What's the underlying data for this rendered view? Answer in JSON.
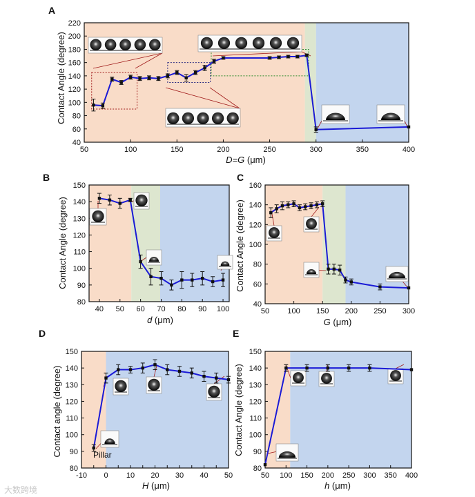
{
  "watermark": "大数跨境",
  "colors": {
    "line": "#1a1ad6",
    "marker": "#111111",
    "zone_wenzel": "#f9dcc8",
    "zone_transition": "#dde6cf",
    "zone_cassie": "#c3d5ee",
    "zoom_box": "#a01a1a",
    "zoom_box_blue": "#2a2a80",
    "zoom_box_green": "#2a8a2a"
  },
  "chart_data": [
    {
      "panel": "A",
      "type": "line",
      "xlabel_main": "D=G",
      "xlabel_unit": " (μm)",
      "ylabel": "Contact Angle (degree)",
      "xlim": [
        50,
        400
      ],
      "ylim": [
        40,
        220
      ],
      "xticks": [
        50,
        100,
        150,
        200,
        250,
        300,
        350,
        400
      ],
      "yticks": [
        40,
        60,
        80,
        100,
        120,
        140,
        160,
        180,
        200,
        220
      ],
      "zones": [
        {
          "from": 50,
          "to": 288,
          "color": "zone_wenzel"
        },
        {
          "from": 288,
          "to": 300,
          "color": "zone_transition"
        },
        {
          "from": 300,
          "to": 400,
          "color": "zone_cassie"
        }
      ],
      "x": [
        60,
        70,
        80,
        90,
        100,
        110,
        120,
        130,
        140,
        150,
        160,
        170,
        180,
        190,
        200,
        250,
        260,
        270,
        280,
        290,
        300,
        400
      ],
      "y": [
        96,
        95,
        135,
        130,
        138,
        136,
        137,
        136,
        140,
        145,
        137,
        145,
        152,
        162,
        167,
        167,
        168,
        169,
        169,
        171,
        59,
        63
      ],
      "err": [
        9,
        4,
        3,
        3,
        3,
        3,
        3,
        3,
        3,
        3,
        5,
        3,
        4,
        3,
        2,
        2,
        2,
        2,
        2,
        2,
        4,
        0
      ],
      "zoom_boxes": [
        {
          "x": [
            58,
            107
          ],
          "y": [
            90,
            145
          ],
          "color": "zoom_box"
        },
        {
          "x": [
            140,
            186
          ],
          "y": [
            130,
            160
          ],
          "color": "zoom_box_blue"
        },
        {
          "x": [
            187,
            292
          ],
          "y": [
            140,
            180
          ],
          "color": "zoom_box_green"
        }
      ]
    },
    {
      "panel": "B",
      "type": "line",
      "xlabel_main": "d",
      "xlabel_unit": " (μm)",
      "ylabel": "Contact Angle (degree)",
      "xlim": [
        35,
        103
      ],
      "ylim": [
        80,
        150
      ],
      "xticks": [
        40,
        50,
        60,
        70,
        80,
        90,
        100
      ],
      "yticks": [
        80,
        90,
        100,
        110,
        120,
        130,
        140,
        150
      ],
      "zones": [
        {
          "from": 35,
          "to": 55.5,
          "color": "zone_wenzel"
        },
        {
          "from": 55.5,
          "to": 69.5,
          "color": "zone_transition"
        },
        {
          "from": 69.5,
          "to": 103,
          "color": "zone_cassie"
        }
      ],
      "x": [
        40,
        45,
        50,
        55,
        60,
        65,
        70,
        75,
        80,
        85,
        90,
        95,
        100
      ],
      "y": [
        142,
        141,
        139,
        141,
        104,
        95,
        94,
        90,
        93,
        93,
        94,
        92,
        93
      ],
      "err": [
        3,
        3,
        3,
        1,
        4,
        5,
        4,
        3,
        5,
        4,
        4,
        3,
        4
      ]
    },
    {
      "panel": "C",
      "type": "line",
      "xlabel_main": "G",
      "xlabel_unit": " (μm)",
      "ylabel": "Contact Angle (degree)",
      "xlim": [
        50,
        300
      ],
      "ylim": [
        40,
        160
      ],
      "xticks": [
        50,
        100,
        150,
        200,
        250,
        300
      ],
      "yticks": [
        40,
        60,
        80,
        100,
        120,
        140,
        160
      ],
      "zones": [
        {
          "from": 50,
          "to": 150,
          "color": "zone_wenzel"
        },
        {
          "from": 150,
          "to": 190,
          "color": "zone_transition"
        },
        {
          "from": 190,
          "to": 300,
          "color": "zone_cassie"
        }
      ],
      "x": [
        60,
        70,
        80,
        90,
        100,
        110,
        120,
        130,
        140,
        150,
        160,
        170,
        180,
        190,
        200,
        250,
        300
      ],
      "y": [
        132,
        136,
        139,
        140,
        141,
        137,
        138,
        139,
        140,
        141,
        75,
        75,
        74,
        64,
        62,
        57,
        56
      ],
      "err": [
        5,
        4,
        4,
        3,
        3,
        3,
        3,
        3,
        3,
        3,
        5,
        5,
        5,
        3,
        3,
        3,
        0
      ]
    },
    {
      "panel": "D",
      "type": "line",
      "xlabel_main": "H",
      "xlabel_unit": " (μm)",
      "ylabel": "Contact angle (degree)",
      "xlim": [
        -10,
        50
      ],
      "ylim": [
        80,
        150
      ],
      "xticks": [
        -10,
        -5,
        0,
        5,
        10,
        15,
        20,
        25,
        30,
        35,
        40,
        45,
        50
      ],
      "xtick_labels_shown": [
        -10,
        0,
        10,
        20,
        30,
        40,
        50
      ],
      "yticks": [
        80,
        90,
        100,
        110,
        120,
        130,
        140,
        150
      ],
      "zones": [
        {
          "from": -10,
          "to": 0,
          "color": "zone_wenzel"
        },
        {
          "from": 0,
          "to": 50,
          "color": "zone_cassie"
        }
      ],
      "x": [
        -5,
        0,
        5,
        10,
        15,
        20,
        25,
        30,
        35,
        40,
        45,
        50
      ],
      "y": [
        92,
        134,
        139,
        139,
        140,
        142,
        139,
        138,
        137,
        135,
        134,
        133
      ],
      "err": [
        2,
        3,
        3,
        2,
        3,
        3,
        3,
        3,
        3,
        3,
        3,
        2
      ],
      "annotation": "Pillar"
    },
    {
      "panel": "E",
      "type": "line",
      "xlabel_main": "h",
      "xlabel_unit": " (μm)",
      "ylabel": "Contact Angle (degree)",
      "xlim": [
        50,
        400
      ],
      "ylim": [
        80,
        150
      ],
      "xticks": [
        50,
        100,
        150,
        200,
        250,
        300,
        350,
        400
      ],
      "yticks": [
        80,
        90,
        100,
        110,
        120,
        130,
        140,
        150
      ],
      "zones": [
        {
          "from": 50,
          "to": 110,
          "color": "zone_wenzel"
        },
        {
          "from": 110,
          "to": 400,
          "color": "zone_cassie"
        }
      ],
      "x": [
        50,
        100,
        150,
        200,
        250,
        300,
        400
      ],
      "y": [
        82,
        140,
        140,
        140,
        140,
        140,
        139
      ],
      "err": [
        0,
        2,
        2,
        2,
        2,
        2,
        0
      ]
    }
  ]
}
